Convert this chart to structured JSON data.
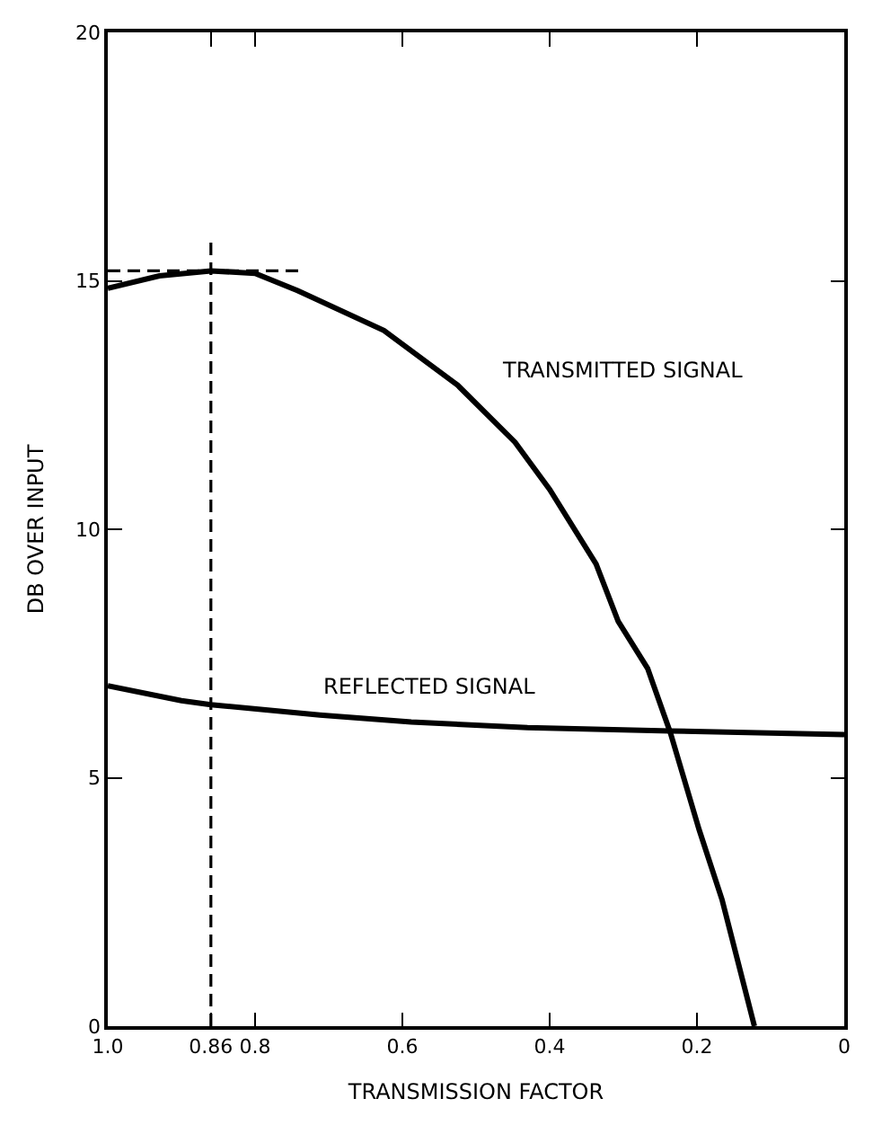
{
  "chart_data": {
    "type": "line",
    "xlabel": "TRANSMISSION FACTOR",
    "ylabel": "DB OVER INPUT",
    "xlim": [
      1.0,
      0
    ],
    "ylim": [
      0,
      20
    ],
    "xticks": [
      {
        "value": 1.0,
        "label": "1.0"
      },
      0.86,
      0.8,
      0.6,
      0.4,
      0.2,
      0
    ],
    "yticks": [
      0,
      5,
      10,
      15,
      20
    ],
    "legend": false,
    "marker": "none",
    "series": [
      {
        "name": "TRANSMITTED SIGNAL",
        "color": "#000000",
        "line_style": "solid",
        "x": [
          1.0,
          0.93,
          0.86,
          0.8,
          0.742,
          0.625,
          0.525,
          0.447,
          0.4,
          0.337,
          0.307,
          0.267,
          0.236,
          0.197,
          0.166,
          0.122
        ],
        "values": [
          14.85,
          15.1,
          15.2,
          15.15,
          14.8,
          14.0,
          12.9,
          11.75,
          10.8,
          9.3,
          8.15,
          7.2,
          5.9,
          3.95,
          2.55,
          0
        ]
      },
      {
        "name": "REFLECTED SIGNAL",
        "color": "#000000",
        "line_style": "solid",
        "x": [
          1.0,
          0.9,
          0.86,
          0.712,
          0.588,
          0.43,
          0.236,
          0.0
        ],
        "values": [
          6.85,
          6.55,
          6.47,
          6.26,
          6.12,
          6.01,
          5.94,
          5.87
        ]
      },
      {
        "color": "#000000",
        "line_style": "dashed",
        "x": [
          1.0,
          0.74
        ],
        "values": [
          15.2,
          15.2
        ]
      },
      {
        "color": "#000000",
        "line_style": "dashed",
        "x": [
          0.86,
          0.86
        ],
        "values": [
          0,
          15.8
        ]
      }
    ]
  }
}
